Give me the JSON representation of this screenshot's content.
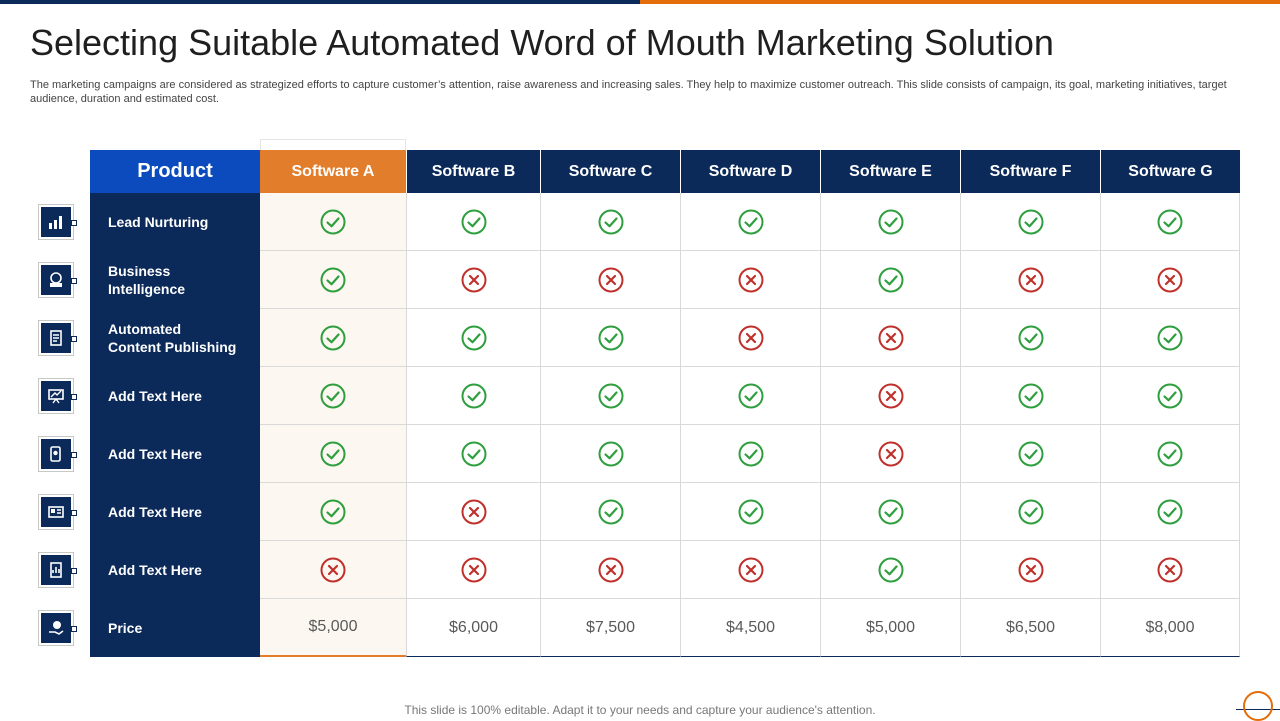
{
  "title": "Selecting Suitable Automated Word of Mouth Marketing Solution",
  "subtitle": "The marketing campaigns are considered as strategized efforts to capture customer’s attention, raise awareness and increasing sales. They help to maximize customer outreach. This slide consists of campaign, its goal, marketing initiatives, target audience, duration and estimated cost.",
  "table": {
    "product_header": "Product",
    "columns": [
      "Software A",
      "Software B",
      "Software C",
      "Software D",
      "Software E",
      "Software F",
      "Software G"
    ],
    "rows": [
      {
        "label": "Lead Nurturing",
        "icon": "bar-chart-icon",
        "values": [
          "yes",
          "yes",
          "yes",
          "yes",
          "yes",
          "yes",
          "yes"
        ]
      },
      {
        "label": "Business\nIntelligence",
        "icon": "brain-icon",
        "values": [
          "yes",
          "no",
          "no",
          "no",
          "yes",
          "no",
          "no"
        ]
      },
      {
        "label": "Automated\nContent Publishing",
        "icon": "document-icon",
        "values": [
          "yes",
          "yes",
          "yes",
          "no",
          "no",
          "yes",
          "yes"
        ]
      },
      {
        "label": "Add  Text Here",
        "icon": "presentation-icon",
        "values": [
          "yes",
          "yes",
          "yes",
          "yes",
          "no",
          "yes",
          "yes"
        ]
      },
      {
        "label": "Add  Text Here",
        "icon": "mobile-gear-icon",
        "values": [
          "yes",
          "yes",
          "yes",
          "yes",
          "no",
          "yes",
          "yes"
        ]
      },
      {
        "label": "Add  Text Here",
        "icon": "id-card-icon",
        "values": [
          "yes",
          "no",
          "yes",
          "yes",
          "yes",
          "yes",
          "yes"
        ]
      },
      {
        "label": "Add  Text Here",
        "icon": "report-icon",
        "values": [
          "no",
          "no",
          "no",
          "no",
          "yes",
          "no",
          "no"
        ]
      }
    ],
    "price_row": {
      "label": "Price",
      "icon": "money-hand-icon",
      "values": [
        "$5,000",
        "$6,000",
        "$7,500",
        "$4,500",
        "$5,000",
        "$6,500",
        "$8,000"
      ]
    }
  },
  "colors": {
    "navy": "#0b2a5a",
    "orange": "#e27d2c",
    "blue": "#0b4bbd",
    "check": "#2e9e3e",
    "cross": "#c0302a"
  },
  "footer": "This slide is 100% editable. Adapt it to your needs and capture your audience's attention."
}
